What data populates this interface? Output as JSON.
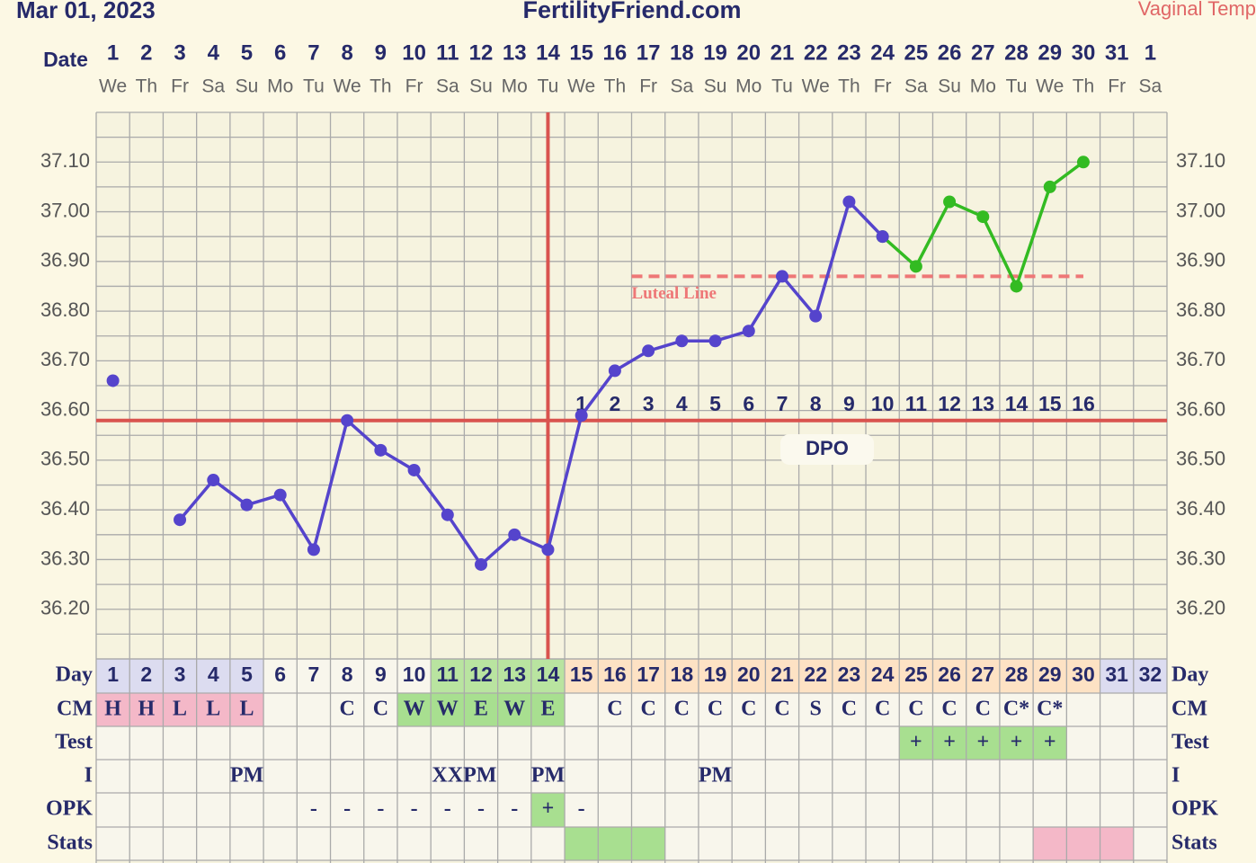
{
  "chart_data": {
    "type": "line",
    "title": "FertilityFriend.com",
    "subtitle": "Mar 01, 2023",
    "temp_label": "Vaginal Temp",
    "date_label": "Date",
    "categories": [
      1,
      2,
      3,
      4,
      5,
      6,
      7,
      8,
      9,
      10,
      11,
      12,
      13,
      14,
      15,
      16,
      17,
      18,
      19,
      20,
      21,
      22,
      23,
      24,
      25,
      26,
      27,
      28,
      29,
      30,
      31,
      1
    ],
    "weekdays": [
      "We",
      "Th",
      "Fr",
      "Sa",
      "Su",
      "Mo",
      "Tu",
      "We",
      "Th",
      "Fr",
      "Sa",
      "Su",
      "Mo",
      "Tu",
      "We",
      "Th",
      "Fr",
      "Sa",
      "Su",
      "Mo",
      "Tu",
      "We",
      "Th",
      "Fr",
      "Sa",
      "Su",
      "Mo",
      "Tu",
      "We",
      "Th",
      "Fr",
      "Sa"
    ],
    "series": [
      {
        "color": "#33bb22",
        "values": [
          null,
          null,
          null,
          null,
          null,
          null,
          null,
          null,
          null,
          null,
          null,
          null,
          null,
          null,
          null,
          null,
          null,
          null,
          null,
          null,
          null,
          null,
          null,
          36.95,
          36.89,
          37.02,
          36.99,
          36.85,
          37.05,
          37.1,
          null,
          null
        ]
      },
      {
        "color": "#5544cc",
        "values": [
          36.66,
          null,
          36.38,
          36.46,
          36.41,
          36.43,
          36.32,
          36.58,
          36.52,
          36.48,
          36.39,
          36.29,
          36.35,
          36.32,
          36.59,
          36.68,
          36.72,
          36.74,
          36.74,
          36.76,
          36.87,
          36.79,
          37.02,
          36.95,
          null,
          null,
          null,
          null,
          null,
          null,
          null,
          null
        ]
      }
    ],
    "ylim": [
      36.1,
      37.2
    ],
    "yticks": [
      {
        "value": 36.2,
        "label": "36.20"
      },
      {
        "value": 36.3,
        "label": "36.30"
      },
      {
        "value": 36.4,
        "label": "36.40"
      },
      {
        "value": 36.5,
        "label": "36.50"
      },
      {
        "value": 36.6,
        "label": "36.60"
      },
      {
        "value": 36.7,
        "label": "36.70"
      },
      {
        "value": 36.8,
        "label": "36.80"
      },
      {
        "value": 36.9,
        "label": "36.90"
      },
      {
        "value": 37.0,
        "label": "37.00"
      },
      {
        "value": 37.1,
        "label": "37.10"
      }
    ],
    "ygrid_step": 0.05,
    "grid": true,
    "coverline": {
      "value": 36.58,
      "color": "#d9534f"
    },
    "ovulation_day": 14,
    "luteal_line": {
      "label": "Luteal Line",
      "value": 36.87,
      "xspan": [
        17,
        30
      ],
      "color": "#ee7777"
    },
    "dpo_label": "DPO",
    "dpo": [
      null,
      null,
      null,
      null,
      null,
      null,
      null,
      null,
      null,
      null,
      null,
      null,
      null,
      null,
      1,
      2,
      3,
      4,
      5,
      6,
      7,
      8,
      9,
      10,
      11,
      12,
      13,
      14,
      15,
      16,
      null,
      null
    ],
    "table": {
      "rows": [
        {
          "label": "Day",
          "cells": [
            1,
            2,
            3,
            4,
            5,
            6,
            7,
            8,
            9,
            10,
            11,
            12,
            13,
            14,
            15,
            16,
            17,
            18,
            19,
            20,
            21,
            22,
            23,
            24,
            25,
            26,
            27,
            28,
            29,
            30,
            31,
            32
          ],
          "fills": [
            "#dcdcf0",
            "#dcdcf0",
            "#dcdcf0",
            "#dcdcf0",
            "#dcdcf0",
            null,
            null,
            null,
            null,
            null,
            "#b9e4a0",
            "#b9e4a0",
            "#b9e4a0",
            "#b9e4a0",
            "#fde2c4",
            "#fde2c4",
            "#fde2c4",
            "#fde2c4",
            "#fde2c4",
            "#fde2c4",
            "#fde2c4",
            "#fde2c4",
            "#fde2c4",
            "#fde2c4",
            "#fde2c4",
            "#fde2c4",
            "#fde2c4",
            "#fde2c4",
            "#fde2c4",
            "#fde2c4",
            "#dcdcf0",
            "#dcdcf0"
          ]
        },
        {
          "label": "CM",
          "cells": [
            "H",
            "H",
            "L",
            "L",
            "L",
            null,
            null,
            "C",
            "C",
            "W",
            "W",
            "E",
            "W",
            "E",
            null,
            "C",
            "C",
            "C",
            "C",
            "C",
            "C",
            "S",
            "C",
            "C",
            "C",
            "C",
            "C",
            "C*",
            "C*",
            null,
            null,
            null
          ],
          "fills": [
            "#f4b8c8",
            "#f4b8c8",
            "#f4b8c8",
            "#f4b8c8",
            "#f4b8c8",
            null,
            null,
            null,
            null,
            "#a8df90",
            "#a8df90",
            "#a8df90",
            "#a8df90",
            "#a8df90",
            null,
            null,
            null,
            null,
            null,
            null,
            null,
            null,
            null,
            null,
            null,
            null,
            null,
            null,
            null,
            null,
            null,
            null
          ]
        },
        {
          "label": "Test",
          "cells": [
            null,
            null,
            null,
            null,
            null,
            null,
            null,
            null,
            null,
            null,
            null,
            null,
            null,
            null,
            null,
            null,
            null,
            null,
            null,
            null,
            null,
            null,
            null,
            null,
            "+",
            "+",
            "+",
            "+",
            "+",
            null,
            null,
            null
          ],
          "fills": [
            null,
            null,
            null,
            null,
            null,
            null,
            null,
            null,
            null,
            null,
            null,
            null,
            null,
            null,
            null,
            null,
            null,
            null,
            null,
            null,
            null,
            null,
            null,
            null,
            "#a8df90",
            "#a8df90",
            "#a8df90",
            "#a8df90",
            "#a8df90",
            null,
            null,
            null
          ]
        },
        {
          "label": "I",
          "cells": [
            null,
            null,
            null,
            null,
            "PM",
            null,
            null,
            null,
            null,
            null,
            "XXPM",
            null,
            null,
            "PM",
            null,
            null,
            null,
            null,
            "PM",
            null,
            null,
            null,
            null,
            null,
            null,
            null,
            null,
            null,
            null,
            null,
            null,
            null
          ],
          "fills": [
            null,
            null,
            null,
            null,
            null,
            null,
            null,
            null,
            null,
            null,
            null,
            null,
            null,
            null,
            null,
            null,
            null,
            null,
            null,
            null,
            null,
            null,
            null,
            null,
            null,
            null,
            null,
            null,
            null,
            null,
            null,
            null
          ]
        },
        {
          "label": "OPK",
          "cells": [
            null,
            null,
            null,
            null,
            null,
            null,
            "-",
            "-",
            "-",
            "-",
            "-",
            "-",
            "-",
            "+",
            "-",
            null,
            null,
            null,
            null,
            null,
            null,
            null,
            null,
            null,
            null,
            null,
            null,
            null,
            null,
            null,
            null,
            null
          ],
          "fills": [
            null,
            null,
            null,
            null,
            null,
            null,
            null,
            null,
            null,
            null,
            null,
            null,
            null,
            "#a8df90",
            null,
            null,
            null,
            null,
            null,
            null,
            null,
            null,
            null,
            null,
            null,
            null,
            null,
            null,
            null,
            null,
            null,
            null
          ]
        },
        {
          "label": "Stats",
          "cells": [
            null,
            null,
            null,
            null,
            null,
            null,
            null,
            null,
            null,
            null,
            null,
            null,
            null,
            null,
            null,
            null,
            null,
            null,
            null,
            null,
            null,
            null,
            null,
            null,
            null,
            null,
            null,
            null,
            null,
            null,
            null,
            null
          ],
          "fills": [
            null,
            null,
            null,
            null,
            null,
            null,
            null,
            null,
            null,
            null,
            null,
            null,
            null,
            null,
            "#a8df90",
            "#a8df90",
            "#a8df90",
            null,
            null,
            null,
            null,
            null,
            null,
            null,
            null,
            null,
            null,
            null,
            "#f4b8c8",
            "#f4b8c8",
            "#f4b8c8",
            null
          ]
        }
      ]
    }
  }
}
